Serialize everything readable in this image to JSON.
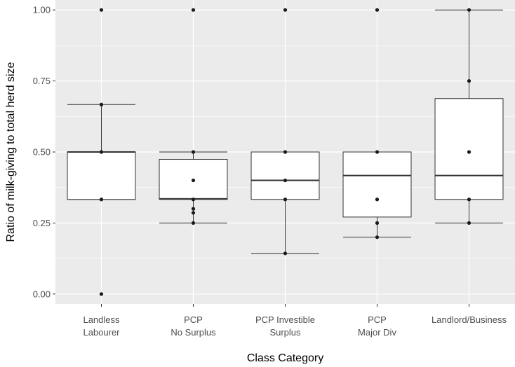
{
  "chart_data": {
    "type": "boxplot",
    "xlabel": "Class Category",
    "ylabel": "Ratio of milk-giving to total herd size",
    "ylim": [
      -0.035,
      1.035
    ],
    "yticks": [
      {
        "value": 0.0,
        "label": "0.00"
      },
      {
        "value": 0.25,
        "label": "0.25"
      },
      {
        "value": 0.5,
        "label": "0.50"
      },
      {
        "value": 0.75,
        "label": "0.75"
      },
      {
        "value": 1.0,
        "label": "1.00"
      }
    ],
    "grid": true,
    "categories": [
      {
        "label_lines": [
          "Landless",
          "Labourer"
        ],
        "q1": 0.333,
        "median": 0.5,
        "q3": 0.5,
        "whisker_low": 0.333,
        "whisker_high": 0.667,
        "points": [
          1.0,
          0.667,
          0.5,
          0.333,
          0.0
        ]
      },
      {
        "label_lines": [
          "PCP",
          "No Surplus"
        ],
        "q1": 0.333,
        "median": 0.335,
        "q3": 0.474,
        "whisker_low": 0.25,
        "whisker_high": 0.5,
        "points": [
          1.0,
          0.5,
          0.4,
          0.333,
          0.3,
          0.286,
          0.25
        ]
      },
      {
        "label_lines": [
          "PCP Investible",
          "Surplus"
        ],
        "q1": 0.333,
        "median": 0.4,
        "q3": 0.5,
        "whisker_low": 0.143,
        "whisker_high": 0.5,
        "points": [
          1.0,
          0.5,
          0.4,
          0.333,
          0.143
        ]
      },
      {
        "label_lines": [
          "PCP",
          "Major Div"
        ],
        "q1": 0.271,
        "median": 0.417,
        "q3": 0.5,
        "whisker_low": 0.2,
        "whisker_high": 0.5,
        "points": [
          1.0,
          0.5,
          0.333,
          0.25,
          0.2
        ]
      },
      {
        "label_lines": [
          "Landlord/Business"
        ],
        "q1": 0.333,
        "median": 0.417,
        "q3": 0.688,
        "whisker_low": 0.25,
        "whisker_high": 1.0,
        "points": [
          1.0,
          0.75,
          0.5,
          0.333,
          0.25
        ]
      }
    ],
    "colors": {
      "panel": "#ebebeb",
      "grid_major": "#ffffff",
      "box_fill": "#ffffff",
      "box_line": "#333333",
      "point": "#1a1a1a"
    }
  }
}
